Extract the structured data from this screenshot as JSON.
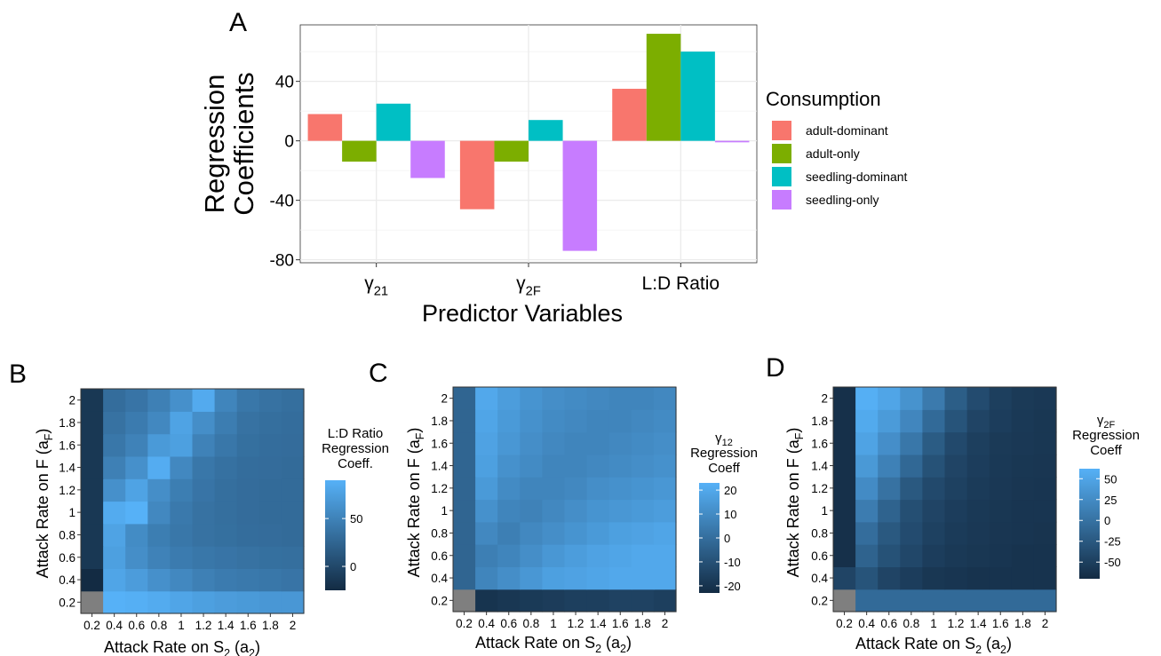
{
  "panel_labels": {
    "a": "A",
    "b": "B",
    "c": "C",
    "d": "D"
  },
  "colors": {
    "adult-dominant": "#F8766D",
    "adult-only": "#7CAE00",
    "seedling-dominant": "#00BFC4",
    "seedling-only": "#C77CFF",
    "heat_low": "#132B43",
    "heat_high": "#56B1F7",
    "na_cell": "#7F7F7F"
  },
  "chart_data": [
    {
      "type": "bar",
      "panel": "A",
      "ylabel_lines": [
        "Regression",
        "Coefficients"
      ],
      "xlabel": "Predictor Variables",
      "categories": [
        {
          "main": "γ",
          "sub": "21"
        },
        {
          "main": "γ",
          "sub": "2F"
        },
        {
          "main": "L:D Ratio",
          "sub": ""
        }
      ],
      "ylim": [
        -82,
        78
      ],
      "yticks": [
        -80,
        -40,
        0,
        40
      ],
      "grid": true,
      "legend_title": "Consumption",
      "legend_position": "right",
      "series": [
        {
          "name": "adult-dominant",
          "values": [
            18,
            -46,
            35
          ]
        },
        {
          "name": "adult-only",
          "values": [
            -14,
            -14,
            72
          ]
        },
        {
          "name": "seedling-dominant",
          "values": [
            25,
            14,
            60
          ]
        },
        {
          "name": "seedling-only",
          "values": [
            -25,
            -74,
            -1
          ]
        }
      ]
    },
    {
      "type": "heatmap",
      "panel": "B",
      "xlabel": "Attack Rate on",
      "xvar": {
        "main": "S",
        "sub": "2",
        "paren_main": "a",
        "paren_sub": "2"
      },
      "ylabel": "Attack Rate on F",
      "yvar": {
        "main": "a",
        "sub": "F"
      },
      "x": [
        0.2,
        0.4,
        0.6,
        0.8,
        1,
        1.2,
        1.4,
        1.6,
        1.8,
        2
      ],
      "y": [
        0.2,
        0.4,
        0.6,
        0.8,
        1,
        1.2,
        1.4,
        1.6,
        1.8,
        2
      ],
      "tick_labels": [
        "0.2",
        "0.4",
        "0.6",
        "0.8",
        "1",
        "1.2",
        "1.4",
        "1.6",
        "1.8",
        "2"
      ],
      "color_range": [
        -25,
        90
      ],
      "legend_title": [
        "L:D Ratio",
        "Regression",
        "Coeff."
      ],
      "legend_ticks": [
        0,
        50
      ],
      "z": [
        [
          null,
          90,
          88,
          85,
          80,
          75,
          72,
          70,
          68,
          68
        ],
        [
          -25,
          80,
          72,
          62,
          55,
          48,
          44,
          42,
          40,
          38
        ],
        [
          -14,
          75,
          60,
          50,
          44,
          40,
          38,
          36,
          34,
          33
        ],
        [
          -14,
          78,
          58,
          46,
          40,
          36,
          34,
          32,
          31,
          30
        ],
        [
          -14,
          85,
          90,
          55,
          42,
          36,
          33,
          31,
          30,
          30
        ],
        [
          -14,
          62,
          78,
          60,
          46,
          38,
          33,
          31,
          30,
          30
        ],
        [
          -14,
          48,
          62,
          86,
          55,
          40,
          35,
          32,
          31,
          30
        ],
        [
          -14,
          40,
          50,
          70,
          75,
          50,
          40,
          34,
          32,
          31
        ],
        [
          -14,
          36,
          44,
          55,
          78,
          60,
          45,
          36,
          33,
          32
        ],
        [
          -14,
          32,
          38,
          48,
          62,
          84,
          52,
          40,
          36,
          33
        ]
      ]
    },
    {
      "type": "heatmap",
      "panel": "C",
      "xlabel": "Attack Rate on",
      "xvar": {
        "main": "S",
        "sub": "2",
        "paren_main": "a",
        "paren_sub": "2"
      },
      "ylabel": "Attack Rate on F",
      "yvar": {
        "main": "a",
        "sub": "F"
      },
      "x": [
        0.2,
        0.4,
        0.6,
        0.8,
        1,
        1.2,
        1.4,
        1.6,
        1.8,
        2
      ],
      "y": [
        0.2,
        0.4,
        0.6,
        0.8,
        1,
        1.2,
        1.4,
        1.6,
        1.8,
        2
      ],
      "tick_labels": [
        "0.2",
        "0.4",
        "0.6",
        "0.8",
        "1",
        "1.2",
        "1.4",
        "1.6",
        "1.8",
        "2"
      ],
      "color_range": [
        -23,
        23
      ],
      "legend_title": [
        "γ",
        "Regression",
        "Coeff"
      ],
      "legend_title_sub": "12",
      "legend_ticks": [
        -20,
        -10,
        0,
        10,
        20
      ],
      "z": [
        [
          null,
          -20,
          -19,
          -18,
          -17,
          -16,
          -16,
          -15,
          -15,
          -16
        ],
        [
          -3,
          8,
          11,
          14,
          17,
          18,
          19,
          20,
          20,
          20
        ],
        [
          -3,
          6,
          8,
          11,
          14,
          16,
          18,
          19,
          20,
          20
        ],
        [
          -3,
          9,
          6,
          9,
          11,
          13,
          15,
          17,
          18,
          19
        ],
        [
          -3,
          12,
          8,
          7,
          9,
          11,
          13,
          14,
          15,
          16
        ],
        [
          -3,
          15,
          10,
          8,
          8,
          9,
          11,
          12,
          13,
          14
        ],
        [
          -3,
          17,
          12,
          10,
          8,
          8,
          9,
          10,
          11,
          12
        ],
        [
          -3,
          18,
          14,
          11,
          9,
          8,
          8,
          9,
          10,
          11
        ],
        [
          -3,
          19,
          15,
          12,
          10,
          9,
          8,
          8,
          9,
          10
        ],
        [
          -3,
          20,
          16,
          13,
          11,
          10,
          9,
          8,
          8,
          9
        ]
      ]
    },
    {
      "type": "heatmap",
      "panel": "D",
      "xlabel": "Attack Rate on",
      "xvar": {
        "main": "S",
        "sub": "2",
        "paren_main": "a",
        "paren_sub": "2"
      },
      "ylabel": "Attack Rate on F",
      "yvar": {
        "main": "a",
        "sub": "F"
      },
      "x": [
        0.2,
        0.4,
        0.6,
        0.8,
        1,
        1.2,
        1.4,
        1.6,
        1.8,
        2
      ],
      "y": [
        0.2,
        0.4,
        0.6,
        0.8,
        1,
        1.2,
        1.4,
        1.6,
        1.8,
        2
      ],
      "tick_labels": [
        "0.2",
        "0.4",
        "0.6",
        "0.8",
        "1",
        "1.2",
        "1.4",
        "1.6",
        "1.8",
        "2"
      ],
      "color_range": [
        -70,
        62
      ],
      "legend_title": [
        "γ",
        "Regression",
        "Coeff"
      ],
      "legend_title_sub": "2F",
      "legend_ticks": [
        -50,
        -25,
        0,
        25,
        50
      ],
      "z": [
        [
          null,
          -8,
          -8,
          -8,
          -8,
          -8,
          -8,
          -8,
          -8,
          -8
        ],
        [
          -45,
          -30,
          -45,
          -52,
          -58,
          -60,
          -62,
          -62,
          -62,
          -62
        ],
        [
          -65,
          -15,
          -32,
          -42,
          -52,
          -56,
          -58,
          -60,
          -62,
          -62
        ],
        [
          -65,
          -5,
          -25,
          -38,
          -48,
          -54,
          -57,
          -59,
          -60,
          -61
        ],
        [
          -65,
          10,
          -15,
          -35,
          -45,
          -52,
          -56,
          -58,
          -60,
          -60
        ],
        [
          -65,
          25,
          0,
          -25,
          -40,
          -48,
          -54,
          -57,
          -59,
          -60
        ],
        [
          -65,
          38,
          15,
          -10,
          -32,
          -45,
          -52,
          -56,
          -58,
          -59
        ],
        [
          -65,
          48,
          28,
          5,
          -22,
          -40,
          -50,
          -55,
          -57,
          -58
        ],
        [
          -65,
          55,
          40,
          20,
          -8,
          -30,
          -45,
          -52,
          -56,
          -58
        ],
        [
          -65,
          60,
          50,
          32,
          8,
          -20,
          -38,
          -50,
          -55,
          -57
        ]
      ]
    }
  ]
}
